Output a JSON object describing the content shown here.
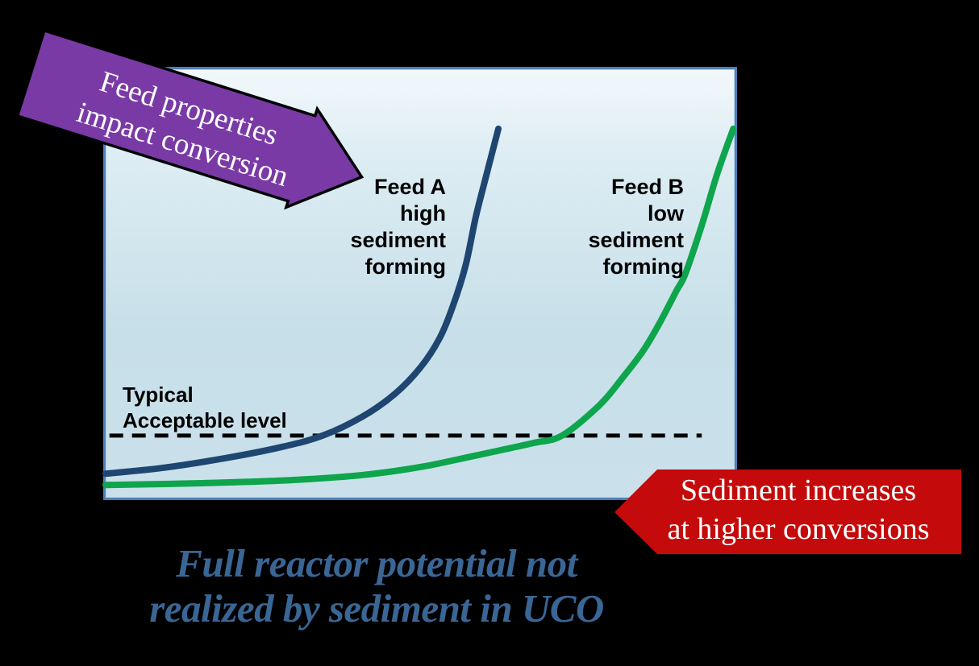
{
  "banners": {
    "feed_properties": {
      "lines": [
        "Feed properties",
        "impact conversion"
      ],
      "fill": "#7a3aa6",
      "outline": "#000000",
      "text_color": "#ffffff"
    },
    "sediment_increases": {
      "lines": [
        "Sediment increases",
        "at higher conversions"
      ],
      "fill": "#c40a0a",
      "text_color": "#ffffff"
    }
  },
  "labels": {
    "feed_a": {
      "lines": [
        "Feed A",
        "high",
        "sediment",
        "forming"
      ]
    },
    "feed_b": {
      "lines": [
        "Feed B",
        "low",
        "sediment",
        "forming"
      ]
    },
    "threshold": {
      "lines": [
        "Typical",
        "Acceptable level"
      ]
    }
  },
  "caption": {
    "lines": [
      "Full reactor potential not",
      "realized by sediment in UCO"
    ],
    "color": "#3a6695"
  },
  "chart_data": {
    "type": "line",
    "title": "",
    "xlabel": "",
    "ylabel": "",
    "axis_labels_visible": false,
    "tick_labels_visible": false,
    "gridlines": false,
    "legend_position": "none",
    "plot_background": "light-blue vertical gradient",
    "units": "percent of plot area (x: 0-100 left to right, y: 0-100 bottom to top)",
    "series": [
      {
        "name": "Feed A high sediment forming",
        "color": "#1f4670",
        "points": [
          [
            0,
            6.1
          ],
          [
            8.8,
            7.4
          ],
          [
            19,
            9.7
          ],
          [
            28,
            12.3
          ],
          [
            34.4,
            14.9
          ],
          [
            40.7,
            19.3
          ],
          [
            45.8,
            24.5
          ],
          [
            49.9,
            30.7
          ],
          [
            52.9,
            37.4
          ],
          [
            55,
            44.8
          ],
          [
            57,
            54.1
          ],
          [
            58.6,
            65.2
          ],
          [
            60.2,
            74.5
          ],
          [
            62.2,
            85.7
          ]
        ]
      },
      {
        "name": "Feed B low sediment forming",
        "color": "#0ea54c",
        "points": [
          [
            0,
            3.5
          ],
          [
            15.2,
            3.9
          ],
          [
            29.2,
            4.6
          ],
          [
            40.7,
            5.8
          ],
          [
            49.7,
            7.6
          ],
          [
            56.1,
            9.5
          ],
          [
            62.5,
            11.5
          ],
          [
            67.8,
            13.2
          ],
          [
            72.3,
            14.9
          ],
          [
            78.2,
            21.9
          ],
          [
            81.9,
            28.3
          ],
          [
            85.1,
            34.4
          ],
          [
            87.6,
            40.5
          ],
          [
            90.4,
            48.3
          ],
          [
            91.8,
            52.2
          ],
          [
            94.4,
            63.4
          ],
          [
            96.9,
            75.5
          ],
          [
            99.4,
            85.7
          ]
        ]
      }
    ],
    "threshold": {
      "label": "Typical Acceptable level",
      "y_pct": 14.9,
      "x_start_pct": 0.6,
      "x_end_pct": 94.4,
      "style": "dashed",
      "color": "#000000"
    },
    "annotations": [
      "Feed properties impact conversion",
      "Sediment increases at higher conversions",
      "Full reactor potential not realized by sediment in UCO"
    ]
  }
}
